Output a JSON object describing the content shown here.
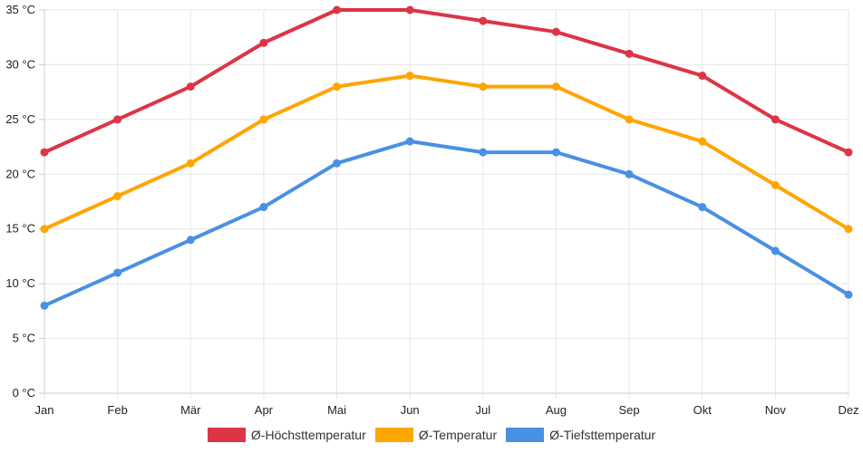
{
  "chart_data": {
    "type": "line",
    "title": "",
    "xlabel": "",
    "ylabel": "",
    "categories": [
      "Jan",
      "Feb",
      "Mär",
      "Apr",
      "Mai",
      "Jun",
      "Jul",
      "Aug",
      "Sep",
      "Okt",
      "Nov",
      "Dez"
    ],
    "ylim": [
      0,
      35
    ],
    "yticks": [
      0,
      5,
      10,
      15,
      20,
      25,
      30,
      35
    ],
    "ytick_labels": [
      "0 °C",
      "5 °C",
      "10 °C",
      "15 °C",
      "20 °C",
      "25 °C",
      "30 °C",
      "35 °C"
    ],
    "grid": true,
    "legend_position": "bottom",
    "series": [
      {
        "name": "Ø-Höchsttemperatur",
        "color": "#dc3545",
        "values": [
          22,
          25,
          28,
          32,
          35,
          35,
          34,
          33,
          31,
          29,
          25,
          22
        ]
      },
      {
        "name": "Ø-Temperatur",
        "color": "#ffa500",
        "values": [
          15,
          18,
          21,
          25,
          28,
          29,
          28,
          28,
          25,
          23,
          19,
          15
        ]
      },
      {
        "name": "Ø-Tiefsttemperatur",
        "color": "#4a90e2",
        "values": [
          8,
          11,
          14,
          17,
          21,
          23,
          22,
          22,
          20,
          17,
          13,
          9
        ]
      }
    ]
  }
}
